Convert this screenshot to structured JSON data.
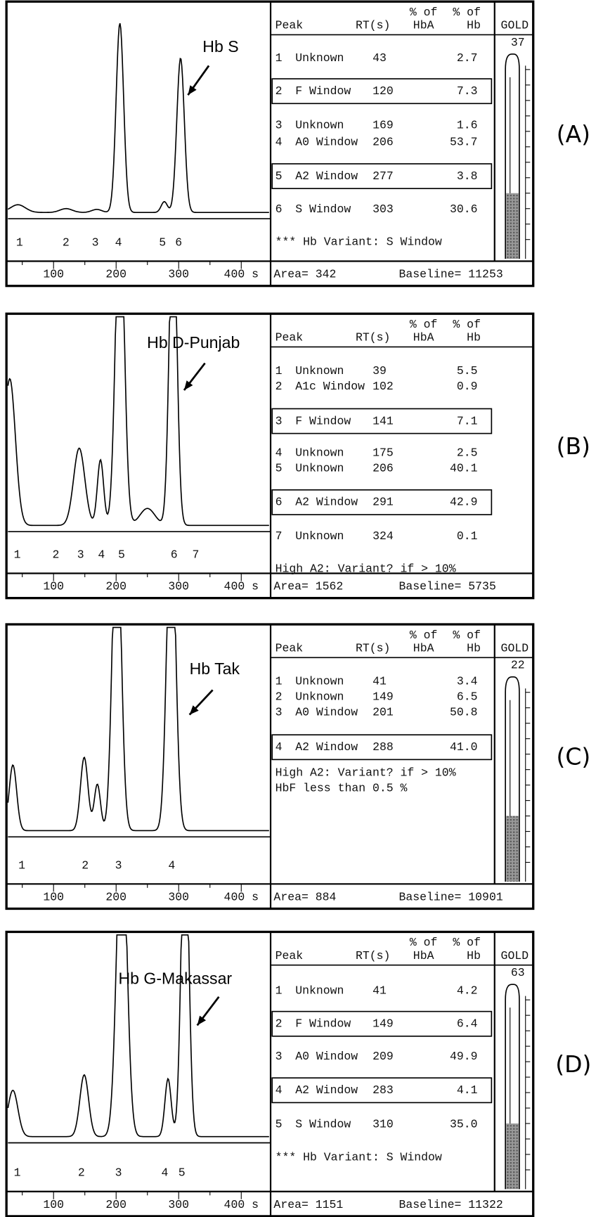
{
  "panels": [
    {
      "label": "(A)",
      "annotation": "Hb S",
      "peak_labels": [
        "1",
        "2",
        "3",
        "4",
        "5",
        "6"
      ],
      "x_ticks": [
        "100",
        "200",
        "300",
        "400 s"
      ],
      "header": {
        "peak": "Peak",
        "rt": "RT(s)",
        "pct_hba_1": "% of",
        "pct_hba_2": "HbA",
        "pct_hb_1": "% of",
        "pct_hb_2": "Hb"
      },
      "gold": {
        "label": "GOLD",
        "value": "37"
      },
      "rows": [
        {
          "peak": "1",
          "name": "Unknown",
          "rt": "43",
          "pct_hb": "2.7"
        },
        {
          "peak": "2",
          "name": "F Window",
          "rt": "120",
          "pct_hb": "7.3",
          "boxed": true
        },
        {
          "peak": "3",
          "name": "Unknown",
          "rt": "169",
          "pct_hb": "1.6"
        },
        {
          "peak": "4",
          "name": "A0 Window",
          "rt": "206",
          "pct_hb": "53.7"
        },
        {
          "peak": "5",
          "name": "A2 Window",
          "rt": "277",
          "pct_hb": "3.8",
          "boxed": true
        },
        {
          "peak": "6",
          "name": "S Window",
          "rt": "303",
          "pct_hb": "30.6"
        }
      ],
      "notes": [
        "*** Hb Variant:  S Window"
      ],
      "area": "Area= 342",
      "baseline": "Baseline= 11253"
    },
    {
      "label": "(B)",
      "annotation": "Hb D-Punjab",
      "peak_labels": [
        "1",
        "2",
        "3",
        "4",
        "5",
        "6",
        "7"
      ],
      "x_ticks": [
        "100",
        "200",
        "300",
        "400 s"
      ],
      "header": {
        "peak": "Peak",
        "rt": "RT(s)",
        "pct_hba_1": "% of",
        "pct_hba_2": "HbA",
        "pct_hb_1": "% of",
        "pct_hb_2": "Hb"
      },
      "rows": [
        {
          "peak": "1",
          "name": "Unknown",
          "rt": "39",
          "pct_hb": "5.5"
        },
        {
          "peak": "2",
          "name": "A1c Window",
          "rt": "102",
          "pct_hb": "0.9"
        },
        {
          "peak": "3",
          "name": "F Window",
          "rt": "141",
          "pct_hb": "7.1",
          "boxed": true
        },
        {
          "peak": "4",
          "name": "Unknown",
          "rt": "175",
          "pct_hb": "2.5"
        },
        {
          "peak": "5",
          "name": "Unknown",
          "rt": "206",
          "pct_hb": "40.1"
        },
        {
          "peak": "6",
          "name": "A2 Window",
          "rt": "291",
          "pct_hb": "42.9",
          "boxed": true
        },
        {
          "peak": "7",
          "name": "Unknown",
          "rt": "324",
          "pct_hb": "0.1"
        }
      ],
      "notes": [
        "High A2: Variant? if > 10%"
      ],
      "area": "Area= 1562",
      "baseline": "Baseline= 5735"
    },
    {
      "label": "(C)",
      "annotation": "Hb Tak",
      "peak_labels": [
        "1",
        "2",
        "3",
        "4"
      ],
      "x_ticks": [
        "100",
        "200",
        "300",
        "400 s"
      ],
      "header": {
        "peak": "Peak",
        "rt": "RT(s)",
        "pct_hba_1": "% of",
        "pct_hba_2": "HbA",
        "pct_hb_1": "% of",
        "pct_hb_2": "Hb"
      },
      "gold": {
        "label": "GOLD",
        "value": "22"
      },
      "rows": [
        {
          "peak": "1",
          "name": "Unknown",
          "rt": "41",
          "pct_hb": "3.4"
        },
        {
          "peak": "2",
          "name": "Unknown",
          "rt": "149",
          "pct_hb": "6.5"
        },
        {
          "peak": "3",
          "name": "A0 Window",
          "rt": "201",
          "pct_hb": "50.8"
        },
        {
          "peak": "4",
          "name": "A2 Window",
          "rt": "288",
          "pct_hb": "41.0",
          "boxed": true
        }
      ],
      "notes": [
        "High A2: Variant? if > 10%",
        "HbF less than 0.5 %"
      ],
      "area": "Area= 884",
      "baseline": "Baseline= 10901"
    },
    {
      "label": "(D)",
      "annotation": "Hb G-Makassar",
      "peak_labels": [
        "1",
        "2",
        "3",
        "4",
        "5"
      ],
      "x_ticks": [
        "100",
        "200",
        "300",
        "400 s"
      ],
      "header": {
        "peak": "Peak",
        "rt": "RT(s)",
        "pct_hba_1": "% of",
        "pct_hba_2": "HbA",
        "pct_hb_1": "% of",
        "pct_hb_2": "Hb"
      },
      "gold": {
        "label": "GOLD",
        "value": "63"
      },
      "rows": [
        {
          "peak": "1",
          "name": "Unknown",
          "rt": "41",
          "pct_hb": "4.2"
        },
        {
          "peak": "2",
          "name": "F Window",
          "rt": "149",
          "pct_hb": "6.4",
          "boxed": true
        },
        {
          "peak": "3",
          "name": "A0 Window",
          "rt": "209",
          "pct_hb": "49.9"
        },
        {
          "peak": "4",
          "name": "A2 Window",
          "rt": "283",
          "pct_hb": "4.1",
          "boxed": true
        },
        {
          "peak": "5",
          "name": "S Window",
          "rt": "310",
          "pct_hb": "35.0"
        }
      ],
      "notes": [
        "*** Hb Variant:  S Window"
      ],
      "area": "Area= 1151",
      "baseline": "Baseline= 11322"
    }
  ]
}
